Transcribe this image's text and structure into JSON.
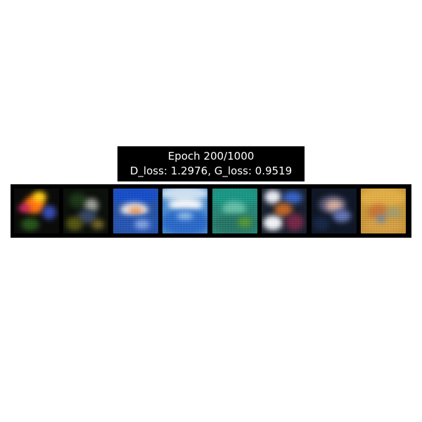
{
  "title": {
    "line1": "Epoch 200/1000",
    "line2": "D_loss: 1.2976, G_loss: 0.9519"
  },
  "samples": {
    "count": 8
  }
}
